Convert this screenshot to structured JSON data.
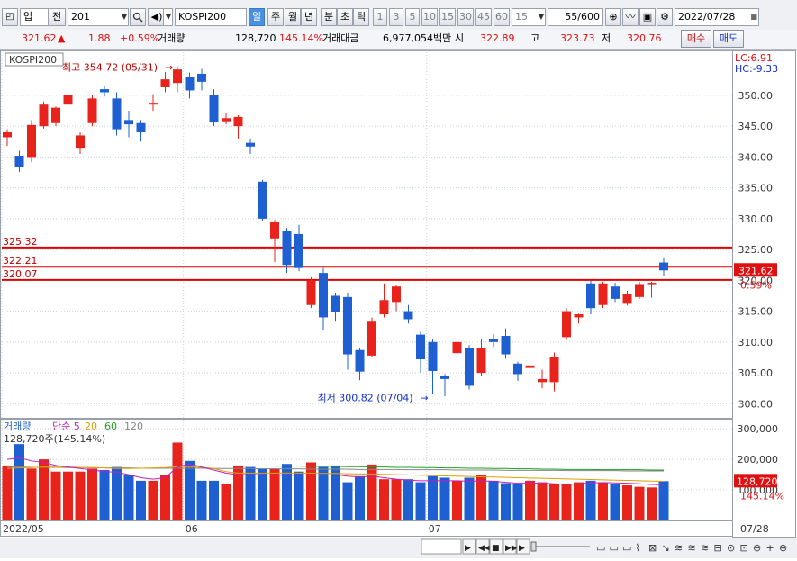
{
  "toolbar": {
    "market_select": "업",
    "previous_label": "전",
    "code_value": "201",
    "name_value": "KOSPI200",
    "periods": [
      "일",
      "주",
      "월",
      "년",
      "분",
      "초",
      "틱"
    ],
    "selected_period": "일",
    "intervals": [
      "1",
      "3",
      "5",
      "10",
      "15",
      "30",
      "45",
      "60"
    ],
    "interval_value": "15",
    "count_value": "55",
    "count_total": "/600",
    "date_value": "2022/07/28"
  },
  "quote": {
    "price": "321.62",
    "arrow": "▲",
    "change": "1.88",
    "change_pct": "+0.59%",
    "volume_label": "거래량",
    "volume": "128,720",
    "volume_pct": "145.14%",
    "amount_label": "거래대금",
    "amount": "6,977,054백만",
    "open_label": "시",
    "open": "322.89",
    "high_label": "고",
    "high": "323.73",
    "low_label": "저",
    "low": "320.76",
    "buy_label": "매수",
    "sell_label": "매도"
  },
  "chart_data": {
    "type": "candlestick",
    "instrument_label": "KOSPI200",
    "lc_label": "LC:6.91",
    "hc_label": "HC:-9.33",
    "ylim": [
      298,
      357
    ],
    "yticks": [
      "350.00",
      "345.00",
      "340.00",
      "335.00",
      "330.00",
      "325.00",
      "320.00",
      "315.00",
      "310.00",
      "305.00",
      "300.00"
    ],
    "ytick_values": [
      350,
      345,
      340,
      335,
      330,
      325,
      320,
      315,
      310,
      305,
      300
    ],
    "xlabels": [
      {
        "label": "2022/05",
        "index": 0
      },
      {
        "label": "06",
        "index": 15
      },
      {
        "label": "07",
        "index": 35
      }
    ],
    "corner_date": "07/28",
    "max_annotation": {
      "text": "최고 354.72 (05/31)",
      "index": 14,
      "value": 354.72
    },
    "min_annotation": {
      "text": "최저 300.82 (07/04)",
      "index": 35,
      "value": 300.82
    },
    "hlines": [
      {
        "label": "325.32",
        "value": 325.32
      },
      {
        "label": "322.21",
        "value": 322.21
      },
      {
        "label": "320.07",
        "value": 320.07
      }
    ],
    "current_price": {
      "label": "321.62",
      "value": 321.62
    },
    "change_pct_tag": "0.59%",
    "candles": [
      {
        "o": 343.2,
        "h": 344.5,
        "l": 341.8,
        "c": 344.0
      },
      {
        "o": 340.2,
        "h": 341.0,
        "l": 337.6,
        "c": 338.3
      },
      {
        "o": 340.0,
        "h": 346.0,
        "l": 339.2,
        "c": 345.2
      },
      {
        "o": 345.0,
        "h": 349.0,
        "l": 344.6,
        "c": 348.5
      },
      {
        "o": 345.5,
        "h": 348.2,
        "l": 345.0,
        "c": 348.0
      },
      {
        "o": 348.5,
        "h": 351.0,
        "l": 347.2,
        "c": 350.0
      },
      {
        "o": 341.5,
        "h": 344.0,
        "l": 340.5,
        "c": 343.5
      },
      {
        "o": 345.5,
        "h": 350.0,
        "l": 345.0,
        "c": 349.5
      },
      {
        "o": 351.0,
        "h": 351.5,
        "l": 349.8,
        "c": 350.5
      },
      {
        "o": 349.5,
        "h": 350.5,
        "l": 343.5,
        "c": 344.5
      },
      {
        "o": 346.0,
        "h": 347.5,
        "l": 343.2,
        "c": 345.3
      },
      {
        "o": 345.5,
        "h": 346.0,
        "l": 342.5,
        "c": 344.0
      },
      {
        "o": 348.5,
        "h": 350.2,
        "l": 347.5,
        "c": 348.8
      },
      {
        "o": 351.3,
        "h": 353.8,
        "l": 350.5,
        "c": 352.6
      },
      {
        "o": 352.0,
        "h": 354.72,
        "l": 350.5,
        "c": 354.2
      },
      {
        "o": 353.0,
        "h": 353.7,
        "l": 349.5,
        "c": 350.8
      },
      {
        "o": 353.5,
        "h": 354.3,
        "l": 350.8,
        "c": 352.2
      },
      {
        "o": 350.0,
        "h": 351.0,
        "l": 345.0,
        "c": 345.6
      },
      {
        "o": 345.8,
        "h": 347.2,
        "l": 345.3,
        "c": 346.3
      },
      {
        "o": 345.0,
        "h": 346.8,
        "l": 343.0,
        "c": 346.5
      },
      {
        "o": 342.3,
        "h": 343.0,
        "l": 340.5,
        "c": 341.7
      },
      {
        "o": 336.0,
        "h": 336.3,
        "l": 329.7,
        "c": 330.0
      },
      {
        "o": 326.8,
        "h": 329.8,
        "l": 323.0,
        "c": 329.5
      },
      {
        "o": 328.0,
        "h": 328.5,
        "l": 321.2,
        "c": 322.5
      },
      {
        "o": 327.5,
        "h": 329.0,
        "l": 321.5,
        "c": 322.0
      },
      {
        "o": 316.0,
        "h": 320.5,
        "l": 315.5,
        "c": 320.0
      },
      {
        "o": 321.2,
        "h": 322.0,
        "l": 312.0,
        "c": 314.0
      },
      {
        "o": 317.5,
        "h": 318.0,
        "l": 313.3,
        "c": 314.8
      },
      {
        "o": 317.3,
        "h": 318.0,
        "l": 305.5,
        "c": 308.0
      },
      {
        "o": 308.7,
        "h": 309.0,
        "l": 303.8,
        "c": 305.2
      },
      {
        "o": 307.8,
        "h": 314.0,
        "l": 307.5,
        "c": 313.3
      },
      {
        "o": 314.5,
        "h": 319.5,
        "l": 314.0,
        "c": 316.8
      },
      {
        "o": 316.5,
        "h": 319.3,
        "l": 315.0,
        "c": 319.0
      },
      {
        "o": 315.0,
        "h": 316.0,
        "l": 313.0,
        "c": 313.7
      },
      {
        "o": 311.2,
        "h": 311.7,
        "l": 305.0,
        "c": 307.2
      },
      {
        "o": 310.0,
        "h": 310.5,
        "l": 301.5,
        "c": 305.3
      },
      {
        "o": 304.5,
        "h": 304.8,
        "l": 301.2,
        "c": 304.0
      },
      {
        "o": 308.2,
        "h": 310.2,
        "l": 306.0,
        "c": 310.0
      },
      {
        "o": 309.0,
        "h": 309.5,
        "l": 302.3,
        "c": 302.9
      },
      {
        "o": 305.0,
        "h": 310.5,
        "l": 304.5,
        "c": 309.0
      },
      {
        "o": 310.5,
        "h": 311.3,
        "l": 309.2,
        "c": 310.0
      },
      {
        "o": 311.0,
        "h": 312.2,
        "l": 307.3,
        "c": 308.0
      },
      {
        "o": 306.5,
        "h": 306.8,
        "l": 303.7,
        "c": 304.8
      },
      {
        "o": 305.8,
        "h": 306.8,
        "l": 304.0,
        "c": 306.2
      },
      {
        "o": 303.5,
        "h": 305.5,
        "l": 302.5,
        "c": 304.0
      },
      {
        "o": 303.5,
        "h": 308.3,
        "l": 302.0,
        "c": 307.5
      },
      {
        "o": 310.8,
        "h": 315.5,
        "l": 310.3,
        "c": 315.0
      },
      {
        "o": 314.0,
        "h": 314.6,
        "l": 313.0,
        "c": 314.5
      },
      {
        "o": 319.5,
        "h": 320.0,
        "l": 314.5,
        "c": 315.5
      },
      {
        "o": 316.0,
        "h": 319.8,
        "l": 315.5,
        "c": 319.5
      },
      {
        "o": 319.0,
        "h": 319.6,
        "l": 316.5,
        "c": 317.0
      },
      {
        "o": 316.2,
        "h": 318.3,
        "l": 315.9,
        "c": 317.8
      },
      {
        "o": 317.3,
        "h": 319.8,
        "l": 317.0,
        "c": 319.4
      },
      {
        "o": 319.4,
        "h": 319.8,
        "l": 317.2,
        "c": 319.6
      },
      {
        "o": 322.89,
        "h": 323.73,
        "l": 320.76,
        "c": 321.62
      }
    ],
    "volume": {
      "title": "거래량",
      "ma_labels": [
        {
          "text": "단순 5",
          "color": "#c020c0"
        },
        {
          "text": "20",
          "color": "#e0a000"
        },
        {
          "text": "60",
          "color": "#20a020"
        },
        {
          "text": "120",
          "color": "#888888"
        }
      ],
      "value_label": "128,720주(145.14%)",
      "yticks": [
        "300,000",
        "200,000",
        "100,000"
      ],
      "ytick_values": [
        300000,
        200000,
        100000
      ],
      "ylim": [
        0,
        330000
      ],
      "current_label": "128,720",
      "current_pct_label": "145.14%",
      "values": [
        180000,
        250000,
        170000,
        200000,
        160000,
        160000,
        160000,
        170000,
        165000,
        175000,
        150000,
        130000,
        130000,
        150000,
        255000,
        195000,
        130000,
        130000,
        120000,
        180000,
        175000,
        170000,
        170000,
        185000,
        160000,
        190000,
        175000,
        180000,
        125000,
        145000,
        183000,
        135000,
        135000,
        135000,
        125000,
        145000,
        140000,
        130000,
        140000,
        150000,
        130000,
        122000,
        120000,
        130000,
        125000,
        118000,
        120000,
        125000,
        130000,
        125000,
        120000,
        115000,
        110000,
        108000,
        128720
      ],
      "ma5": [
        200000,
        205000,
        195000,
        190000,
        180000,
        175000,
        170000,
        165000,
        160000,
        158000,
        150000,
        140000,
        135000,
        140000,
        175000,
        185000,
        175000,
        165000,
        155000,
        150000,
        150000,
        150000,
        148000,
        148000,
        148000,
        150000,
        148000,
        150000,
        145000,
        142000,
        145000,
        140000,
        135000,
        132000,
        130000,
        130000,
        130000,
        130000,
        128000,
        130000,
        128000,
        125000,
        122000,
        122000,
        122000,
        120000,
        118000,
        120000,
        123000,
        124000,
        123000,
        122000,
        120000,
        118000,
        117000
      ],
      "ma20": [
        170000,
        172000,
        173000,
        175000,
        175000,
        175000,
        174000,
        173000,
        172000,
        170000,
        170000,
        171000,
        172000,
        173000,
        176000,
        176000,
        174000,
        170000,
        160000,
        155000,
        155000,
        155000,
        155000,
        155000,
        155000,
        155000,
        154000,
        154000,
        153000,
        152000,
        152000,
        151000,
        150000,
        149000,
        148000,
        147000,
        146000,
        145000,
        144000,
        143000,
        142000,
        141000,
        140000,
        139000,
        138000,
        137000,
        136000,
        135000,
        134000,
        133000,
        132000,
        131000,
        130000,
        129000,
        128000
      ],
      "ma60": [
        null,
        null,
        null,
        null,
        null,
        null,
        null,
        null,
        null,
        null,
        null,
        null,
        null,
        null,
        null,
        null,
        null,
        null,
        null,
        null,
        null,
        null,
        178000,
        178000,
        178000,
        177000,
        177000,
        177000,
        176000,
        176000,
        175000,
        175000,
        174000,
        174000,
        173000,
        173000,
        172000,
        172000,
        171000,
        171000,
        170000,
        170000,
        169000,
        169000,
        168000,
        168000,
        167000,
        167000,
        167000,
        166000,
        166000,
        166000,
        166000,
        165000,
        165000
      ],
      "ma120": [
        175000,
        175000,
        174000,
        174000,
        174000,
        173000,
        173000,
        173000,
        172000,
        172000,
        172000,
        171000,
        171000,
        171000,
        171000,
        171000,
        171000,
        170000,
        170000,
        170000,
        170000,
        169000,
        169000,
        169000,
        169000,
        168000,
        168000,
        168000,
        168000,
        167000,
        167000,
        167000,
        167000,
        166000,
        166000,
        166000,
        166000,
        165000,
        165000,
        165000,
        165000,
        164000,
        164000,
        164000,
        164000,
        164000,
        163000,
        163000,
        163000,
        163000,
        163000,
        162000,
        162000,
        162000,
        162000
      ]
    }
  },
  "colors": {
    "up": "#e8231c",
    "down": "#1e5fd2",
    "hline": "#e00000",
    "price_tag": "#e01010",
    "grid": "#c8d2e0"
  }
}
